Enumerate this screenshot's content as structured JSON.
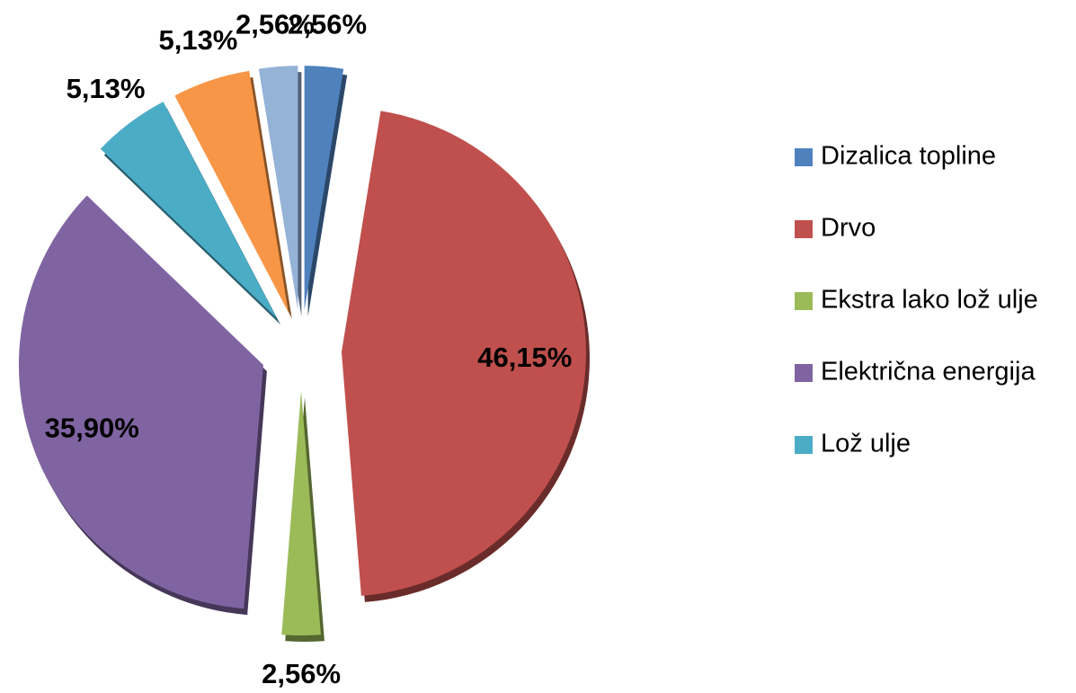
{
  "chart_data": {
    "type": "pie",
    "categories": [
      "Dizalica topline",
      "Drvo",
      "Ekstra lako lož ulje",
      "Električna energija",
      "Lož ulje",
      null,
      null
    ],
    "values": [
      2.56,
      46.15,
      2.56,
      35.9,
      5.13,
      5.13,
      2.56
    ],
    "value_labels": [
      "2,56%",
      "46,15%",
      "2,56%",
      "35,90%",
      "5,13%",
      "5,13%",
      "2,56%"
    ],
    "colors": [
      "#4f81bd",
      "#c0504d",
      "#9bbb59",
      "#8064a2",
      "#4bacc6",
      "#f79646",
      "#95b3d7"
    ],
    "legend": "right"
  }
}
